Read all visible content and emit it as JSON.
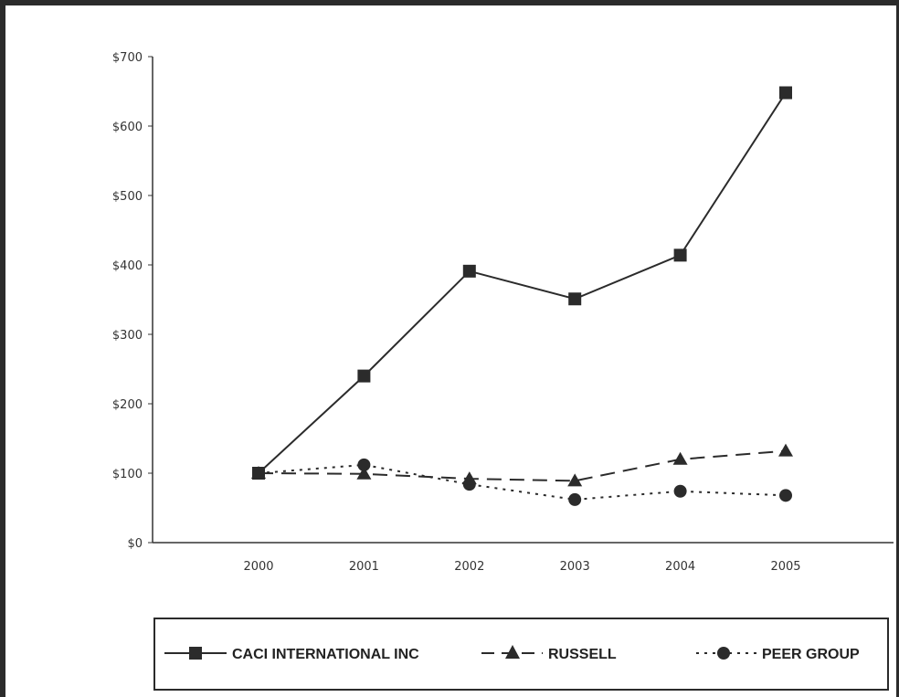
{
  "chart_data": {
    "type": "line",
    "title": "",
    "xlabel": "",
    "ylabel": "",
    "x": [
      "2000",
      "2001",
      "2002",
      "2003",
      "2004",
      "2005"
    ],
    "ylim": [
      0,
      700
    ],
    "y_ticks": [
      "$0",
      "$100",
      "$200",
      "$300",
      "$400",
      "$500",
      "$600",
      "$700"
    ],
    "grid": false,
    "legend_position": "bottom",
    "series": [
      {
        "name": "CACI INTERNATIONAL INC",
        "values": [
          100,
          240,
          391,
          351,
          414,
          648
        ],
        "marker": "square",
        "style": "solid"
      },
      {
        "name": "RUSSELL",
        "values": [
          100,
          99,
          92,
          89,
          120,
          132
        ],
        "marker": "triangle",
        "style": "dashed"
      },
      {
        "name": "PEER GROUP",
        "values": [
          100,
          112,
          84,
          62,
          74,
          68
        ],
        "marker": "circle",
        "style": "dotted"
      }
    ],
    "colors": {
      "line": "#2b2b2b",
      "axis": "#333333",
      "frame": "#2b2b2b"
    }
  }
}
